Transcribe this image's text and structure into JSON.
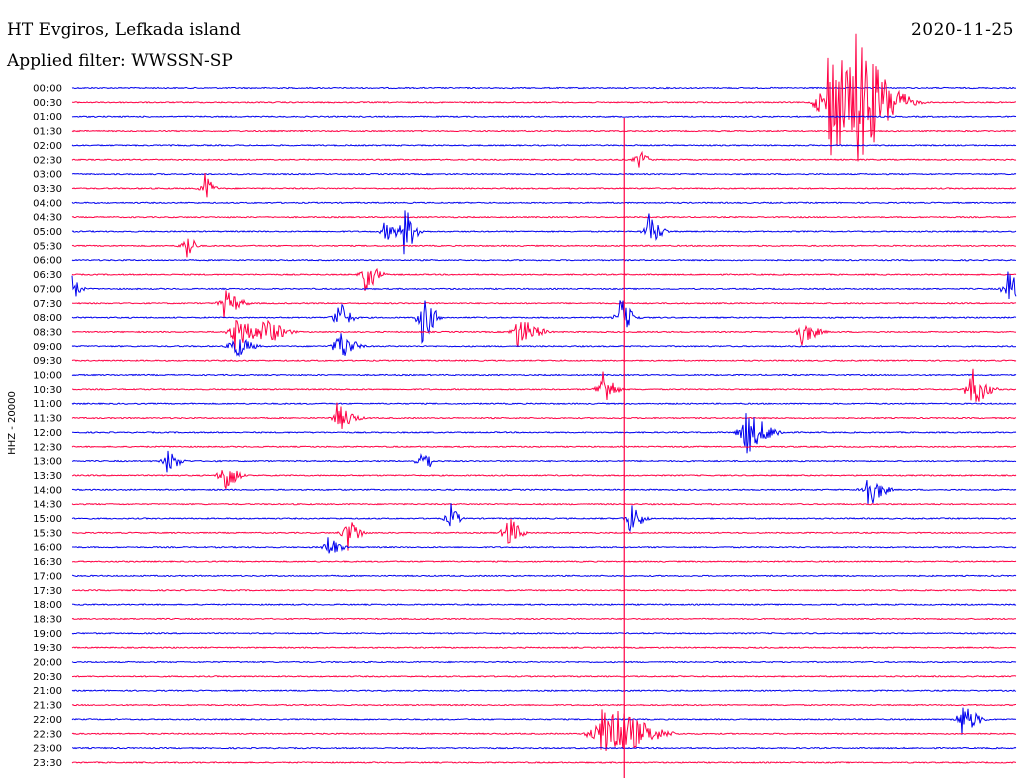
{
  "header": {
    "station": "HT Evgiros, Lefkada island",
    "filter": "Applied filter: WWSSN-SP",
    "date": "2020-11-25"
  },
  "chart_data": {
    "type": "line",
    "title": "HT Evgiros, Lefkada island",
    "subtitle": "Applied filter: WWSSN-SP",
    "date": "2020-11-25",
    "ylabel": "HHZ - 20000",
    "ytick_labels": [
      "00:00",
      "00:30",
      "01:00",
      "01:30",
      "02:00",
      "02:30",
      "03:00",
      "03:30",
      "04:00",
      "04:30",
      "05:00",
      "05:30",
      "06:00",
      "06:30",
      "07:00",
      "07:30",
      "08:00",
      "08:30",
      "09:00",
      "09:30",
      "10:00",
      "10:30",
      "11:00",
      "11:30",
      "12:00",
      "12:30",
      "13:00",
      "13:30",
      "14:00",
      "14:30",
      "15:00",
      "15:30",
      "16:00",
      "16:30",
      "17:00",
      "17:30",
      "18:00",
      "18:30",
      "19:00",
      "19:30",
      "20:00",
      "20:30",
      "21:00",
      "21:30",
      "22:00",
      "22:30",
      "23:00",
      "23:30"
    ],
    "colors": {
      "even": "#0000ee",
      "odd": "#ff0044"
    },
    "trace_minutes": 30,
    "events": [
      {
        "row": 1,
        "x": 0.8,
        "amp": 60,
        "dur": 0.12,
        "decay": 0.02
      },
      {
        "row": 1,
        "x": 0.83,
        "amp": 72,
        "dur": 0.08,
        "decay": 0.03
      },
      {
        "row": 5,
        "x": 0.6,
        "amp": 14,
        "dur": 0.02,
        "decay": 0.01
      },
      {
        "row": 7,
        "x": 0.14,
        "amp": 18,
        "dur": 0.02,
        "decay": 0.01
      },
      {
        "row": 10,
        "x": 0.33,
        "amp": 10,
        "dur": 0.05,
        "decay": 0.01
      },
      {
        "row": 10,
        "x": 0.35,
        "amp": 30,
        "dur": 0.03,
        "decay": 0.01
      },
      {
        "row": 10,
        "x": 0.61,
        "amp": 20,
        "dur": 0.03,
        "decay": 0.01
      },
      {
        "row": 11,
        "x": 0.12,
        "amp": 20,
        "dur": 0.02,
        "decay": 0.01
      },
      {
        "row": 13,
        "x": 0.31,
        "amp": 20,
        "dur": 0.03,
        "decay": 0.01
      },
      {
        "row": 14,
        "x": 0.0,
        "amp": 14,
        "dur": 0.02,
        "decay": 0.01
      },
      {
        "row": 14,
        "x": 0.99,
        "amp": 22,
        "dur": 0.03,
        "decay": 0.01
      },
      {
        "row": 15,
        "x": 0.16,
        "amp": 16,
        "dur": 0.04,
        "decay": 0.01
      },
      {
        "row": 16,
        "x": 0.28,
        "amp": 22,
        "dur": 0.03,
        "decay": 0.01
      },
      {
        "row": 16,
        "x": 0.37,
        "amp": 30,
        "dur": 0.03,
        "decay": 0.01
      },
      {
        "row": 16,
        "x": 0.58,
        "amp": 22,
        "dur": 0.03,
        "decay": 0.01
      },
      {
        "row": 17,
        "x": 0.17,
        "amp": 22,
        "dur": 0.05,
        "decay": 0.01
      },
      {
        "row": 17,
        "x": 0.2,
        "amp": 18,
        "dur": 0.05,
        "decay": 0.01
      },
      {
        "row": 17,
        "x": 0.47,
        "amp": 18,
        "dur": 0.05,
        "decay": 0.01
      },
      {
        "row": 17,
        "x": 0.77,
        "amp": 16,
        "dur": 0.04,
        "decay": 0.01
      },
      {
        "row": 18,
        "x": 0.17,
        "amp": 16,
        "dur": 0.04,
        "decay": 0.01
      },
      {
        "row": 18,
        "x": 0.28,
        "amp": 20,
        "dur": 0.04,
        "decay": 0.01
      },
      {
        "row": 21,
        "x": 0.56,
        "amp": 26,
        "dur": 0.03,
        "decay": 0.01
      },
      {
        "row": 21,
        "x": 0.95,
        "amp": 26,
        "dur": 0.04,
        "decay": 0.01
      },
      {
        "row": 23,
        "x": 0.28,
        "amp": 16,
        "dur": 0.04,
        "decay": 0.01
      },
      {
        "row": 24,
        "x": 0.71,
        "amp": 26,
        "dur": 0.06,
        "decay": 0.01
      },
      {
        "row": 26,
        "x": 0.1,
        "amp": 14,
        "dur": 0.03,
        "decay": 0.01
      },
      {
        "row": 26,
        "x": 0.37,
        "amp": 22,
        "dur": 0.02,
        "decay": 0.01
      },
      {
        "row": 27,
        "x": 0.16,
        "amp": 24,
        "dur": 0.03,
        "decay": 0.01
      },
      {
        "row": 28,
        "x": 0.84,
        "amp": 22,
        "dur": 0.04,
        "decay": 0.01
      },
      {
        "row": 30,
        "x": 0.4,
        "amp": 18,
        "dur": 0.02,
        "decay": 0.01
      },
      {
        "row": 30,
        "x": 0.59,
        "amp": 18,
        "dur": 0.03,
        "decay": 0.01
      },
      {
        "row": 31,
        "x": 0.29,
        "amp": 22,
        "dur": 0.03,
        "decay": 0.01
      },
      {
        "row": 31,
        "x": 0.46,
        "amp": 22,
        "dur": 0.03,
        "decay": 0.01
      },
      {
        "row": 32,
        "x": 0.27,
        "amp": 14,
        "dur": 0.03,
        "decay": 0.01
      },
      {
        "row": 45,
        "x": 0.56,
        "amp": 38,
        "dur": 0.1,
        "decay": 0.02
      },
      {
        "row": 44,
        "x": 0.94,
        "amp": 20,
        "dur": 0.04,
        "decay": 0.01
      }
    ],
    "spike_x": 0.585
  }
}
